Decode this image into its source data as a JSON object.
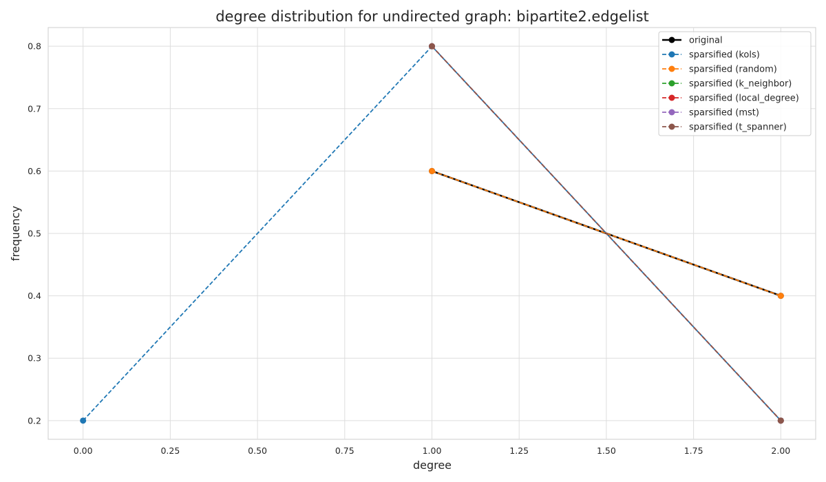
{
  "chart_data": {
    "type": "line",
    "title": "degree distribution for undirected graph: bipartite2.edgelist",
    "xlabel": "degree",
    "ylabel": "frequency",
    "xlim": [
      -0.1,
      2.1
    ],
    "ylim": [
      0.17,
      0.83
    ],
    "xticks": [
      0.0,
      0.25,
      0.5,
      0.75,
      1.0,
      1.25,
      1.5,
      1.75,
      2.0
    ],
    "xtick_labels": [
      "0.00",
      "0.25",
      "0.50",
      "0.75",
      "1.00",
      "1.25",
      "1.50",
      "1.75",
      "2.00"
    ],
    "yticks": [
      0.2,
      0.3,
      0.4,
      0.5,
      0.6,
      0.7,
      0.8
    ],
    "ytick_labels": [
      "0.2",
      "0.3",
      "0.4",
      "0.5",
      "0.6",
      "0.7",
      "0.8"
    ],
    "grid": true,
    "legend_position": "top-right",
    "series": [
      {
        "name": "original",
        "x": [
          1,
          2
        ],
        "y": [
          0.6,
          0.4
        ],
        "color": "#000000",
        "linestyle": "solid"
      },
      {
        "name": "sparsified (kols)",
        "x": [
          0,
          1,
          2
        ],
        "y": [
          0.2,
          0.8,
          0.2
        ],
        "color": "#1f77b4",
        "linestyle": "dashed"
      },
      {
        "name": "sparsified (random)",
        "x": [
          1,
          2
        ],
        "y": [
          0.6,
          0.4
        ],
        "color": "#ff7f0e",
        "linestyle": "dashed"
      },
      {
        "name": "sparsified (k_neighbor)",
        "x": [
          1,
          2
        ],
        "y": [
          0.8,
          0.2
        ],
        "color": "#2ca02c",
        "linestyle": "dashed"
      },
      {
        "name": "sparsified (local_degree)",
        "x": [
          1,
          2
        ],
        "y": [
          0.8,
          0.2
        ],
        "color": "#d62728",
        "linestyle": "dashed"
      },
      {
        "name": "sparsified (mst)",
        "x": [
          1,
          2
        ],
        "y": [
          0.8,
          0.2
        ],
        "color": "#9467bd",
        "linestyle": "dashed"
      },
      {
        "name": "sparsified (t_spanner)",
        "x": [
          1,
          2
        ],
        "y": [
          0.8,
          0.2
        ],
        "color": "#8c564b",
        "linestyle": "dashed"
      }
    ]
  }
}
